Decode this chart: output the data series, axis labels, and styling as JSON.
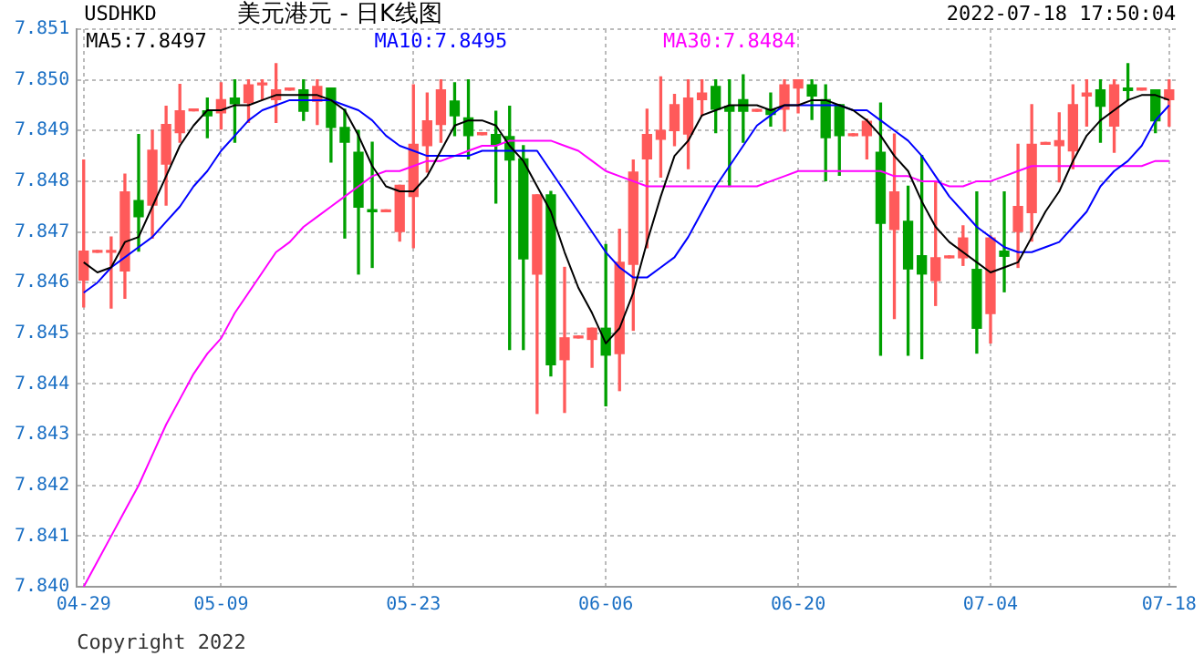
{
  "chart_data": {
    "type": "candlestick",
    "title": "美元港元 - 日K线图",
    "subtitle": "USDHKD",
    "annotations": [
      "2022-07-18 17:50:04",
      "Copyright 2022"
    ],
    "categories": [
      "04-29",
      null,
      null,
      null,
      null,
      null,
      null,
      null,
      null,
      null,
      "05-09",
      null,
      null,
      null,
      null,
      null,
      null,
      null,
      null,
      null,
      null,
      null,
      null,
      null,
      "05-23",
      null,
      null,
      null,
      null,
      null,
      null,
      null,
      null,
      null,
      null,
      null,
      null,
      null,
      "06-06",
      null,
      null,
      null,
      null,
      null,
      null,
      null,
      null,
      null,
      null,
      null,
      null,
      null,
      "06-20",
      null,
      null,
      null,
      null,
      null,
      null,
      null,
      null,
      null,
      null,
      null,
      null,
      null,
      "07-04",
      null,
      null,
      null,
      null,
      null,
      null,
      null,
      null,
      null,
      null,
      null,
      null,
      "07-18"
    ],
    "ohlc": [
      [
        7.84605,
        7.84842,
        7.84552,
        7.84662
      ],
      [
        7.8466,
        7.8466,
        7.8466,
        7.8466
      ],
      [
        7.8466,
        7.8469,
        7.8455,
        7.8466
      ],
      [
        7.84623,
        7.84814,
        7.84569,
        7.84779
      ],
      [
        7.84762,
        7.84892,
        7.84662,
        7.8473
      ],
      [
        7.84753,
        7.849,
        7.84688,
        7.84861
      ],
      [
        7.84834,
        7.84948,
        7.84753,
        7.84912
      ],
      [
        7.84896,
        7.84991,
        7.84877,
        7.84939
      ],
      [
        7.84939,
        7.84939,
        7.84939,
        7.84939
      ],
      [
        7.84939,
        7.84964,
        7.84886,
        7.84929
      ],
      [
        7.84935,
        7.84994,
        7.84903,
        7.84961
      ],
      [
        7.84964,
        7.85,
        7.84877,
        7.84953
      ],
      [
        7.84955,
        7.85,
        7.84916,
        7.8499
      ],
      [
        7.8499,
        7.85,
        7.84961,
        7.8499
      ],
      [
        7.84961,
        7.85032,
        7.84916,
        7.8498
      ],
      [
        7.8498,
        7.8498,
        7.8498,
        7.8498
      ],
      [
        7.8498,
        7.85,
        7.8492,
        7.84938
      ],
      [
        7.84958,
        7.85,
        7.84912,
        7.84987
      ],
      [
        7.84984,
        7.84984,
        7.84838,
        7.84906
      ],
      [
        7.84906,
        7.84942,
        7.84688,
        7.84877
      ],
      [
        7.84857,
        7.849,
        7.84617,
        7.84749
      ],
      [
        7.84744,
        7.84877,
        7.8463,
        7.8474
      ],
      [
        7.8474,
        7.8474,
        7.8474,
        7.8474
      ],
      [
        7.84701,
        7.84792,
        7.84682,
        7.84792
      ],
      [
        7.8477,
        7.8499,
        7.84669,
        7.84873
      ],
      [
        7.8487,
        7.84974,
        7.84818,
        7.84919
      ],
      [
        7.84912,
        7.85,
        7.84877,
        7.8498
      ],
      [
        7.84958,
        7.84994,
        7.8489,
        7.84929
      ],
      [
        7.84925,
        7.85,
        7.84844,
        7.8489
      ],
      [
        7.84892,
        7.84892,
        7.84892,
        7.84892
      ],
      [
        7.84892,
        7.84938,
        7.84757,
        7.84873
      ],
      [
        7.84888,
        7.84948,
        7.84468,
        7.84842
      ],
      [
        7.84844,
        7.8487,
        7.84468,
        7.84647
      ],
      [
        7.84617,
        7.84773,
        7.84342,
        7.84773
      ],
      [
        7.84773,
        7.8478,
        7.84416,
        7.84438
      ],
      [
        7.84448,
        7.8463,
        7.84344,
        7.84491
      ],
      [
        7.84491,
        7.84491,
        7.84491,
        7.84491
      ],
      [
        7.84488,
        7.8451,
        7.84433,
        7.8451
      ],
      [
        7.8451,
        7.84675,
        7.84357,
        7.84457
      ],
      [
        7.8446,
        7.84705,
        7.84387,
        7.8464
      ],
      [
        7.84636,
        7.84842,
        7.84506,
        7.84818
      ],
      [
        7.84844,
        7.84942,
        7.84669,
        7.84892
      ],
      [
        7.84883,
        7.85006,
        7.84808,
        7.849
      ],
      [
        7.849,
        7.84971,
        7.8487,
        7.84951
      ],
      [
        7.84893,
        7.85,
        7.84825,
        7.84964
      ],
      [
        7.84961,
        7.85,
        7.84929,
        7.84974
      ],
      [
        7.84987,
        7.85,
        7.84896,
        7.84942
      ],
      [
        7.84948,
        7.85,
        7.8479,
        7.84938
      ],
      [
        7.84961,
        7.8501,
        7.84877,
        7.84938
      ],
      [
        7.84938,
        7.84938,
        7.84938,
        7.84938
      ],
      [
        7.84942,
        7.84974,
        7.84909,
        7.84932
      ],
      [
        7.84942,
        7.85,
        7.84899,
        7.8499
      ],
      [
        7.84984,
        7.85,
        7.84935,
        7.85
      ],
      [
        7.8499,
        7.85,
        7.84922,
        7.84968
      ],
      [
        7.84961,
        7.8499,
        7.84801,
        7.84886
      ],
      [
        7.84951,
        7.84951,
        7.84812,
        7.8489
      ],
      [
        7.8489,
        7.8489,
        7.8489,
        7.8489
      ],
      [
        7.8489,
        7.84922,
        7.84844,
        7.84918
      ],
      [
        7.84857,
        7.84954,
        7.84457,
        7.84717
      ],
      [
        7.84705,
        7.84893,
        7.84529,
        7.84779
      ],
      [
        7.84721,
        7.8479,
        7.84457,
        7.84627
      ],
      [
        7.84653,
        7.84851,
        7.8445,
        7.84617
      ],
      [
        7.84604,
        7.84799,
        7.84555,
        7.84649
      ],
      [
        7.84649,
        7.84649,
        7.84649,
        7.84649
      ],
      [
        7.84649,
        7.84712,
        7.84634,
        7.84688
      ],
      [
        7.84626,
        7.84779,
        7.84461,
        7.8451
      ],
      [
        7.84539,
        7.84692,
        7.84481,
        7.84688
      ],
      [
        7.84662,
        7.84779,
        7.84582,
        7.84652
      ],
      [
        7.84701,
        7.84873,
        7.8463,
        7.8475
      ],
      [
        7.84738,
        7.84951,
        7.84682,
        7.84873
      ],
      [
        7.84873,
        7.84873,
        7.84873,
        7.84873
      ],
      [
        7.8487,
        7.84935,
        7.84799,
        7.8488
      ],
      [
        7.8486,
        7.8499,
        7.84825,
        7.84951
      ],
      [
        7.84968,
        7.85,
        7.84909,
        7.84974
      ],
      [
        7.8498,
        7.85,
        7.84877,
        7.84948
      ],
      [
        7.84909,
        7.85,
        7.84857,
        7.8499
      ],
      [
        7.84984,
        7.85032,
        7.84961,
        7.84979
      ],
      [
        7.8498,
        7.8498,
        7.8498,
        7.8498
      ],
      [
        7.8498,
        7.8498,
        7.84896,
        7.84919
      ],
      [
        7.84961,
        7.85,
        7.84909,
        7.8498
      ]
    ],
    "colors": [
      "#ff5a5a",
      "#ff5a5a",
      "#ff5a5a",
      "#ff5a5a",
      "#00a000",
      "#ff5a5a",
      "#ff5a5a",
      "#ff5a5a",
      "#ff5a5a",
      "#00a000",
      "#ff5a5a",
      "#00a000",
      "#ff5a5a",
      "#ff5a5a",
      "#ff5a5a",
      "#ff5a5a",
      "#00a000",
      "#ff5a5a",
      "#00a000",
      "#00a000",
      "#00a000",
      "#00a000",
      "#ff5a5a",
      "#ff5a5a",
      "#ff5a5a",
      "#ff5a5a",
      "#ff5a5a",
      "#00a000",
      "#00a000",
      "#ff5a5a",
      "#00a000",
      "#00a000",
      "#00a000",
      "#ff5a5a",
      "#00a000",
      "#ff5a5a",
      "#ff5a5a",
      "#ff5a5a",
      "#00a000",
      "#ff5a5a",
      "#ff5a5a",
      "#ff5a5a",
      "#ff5a5a",
      "#ff5a5a",
      "#ff5a5a",
      "#ff5a5a",
      "#00a000",
      "#00a000",
      "#00a000",
      "#ff5a5a",
      "#00a000",
      "#ff5a5a",
      "#ff5a5a",
      "#00a000",
      "#00a000",
      "#00a000",
      "#ff5a5a",
      "#ff5a5a",
      "#00a000",
      "#ff5a5a",
      "#00a000",
      "#00a000",
      "#ff5a5a",
      "#ff5a5a",
      "#ff5a5a",
      "#00a000",
      "#ff5a5a",
      "#00a000",
      "#ff5a5a",
      "#ff5a5a",
      "#ff5a5a",
      "#ff5a5a",
      "#ff5a5a",
      "#ff5a5a",
      "#00a000",
      "#ff5a5a",
      "#00a000",
      "#ff5a5a",
      "#00a000",
      "#ff5a5a"
    ],
    "series": [
      {
        "name": "MA5:7.8497",
        "type": "line",
        "color": "#000000",
        "values": [
          7.8464,
          7.8462,
          7.8463,
          7.8468,
          7.8469,
          7.8475,
          7.8481,
          7.8487,
          7.8491,
          7.8494,
          7.8494,
          7.8495,
          7.8495,
          7.8496,
          7.8497,
          7.8497,
          7.8497,
          7.8497,
          7.8496,
          7.8494,
          7.8489,
          7.8483,
          7.8479,
          7.8478,
          7.8478,
          7.8481,
          7.8486,
          7.8491,
          7.8492,
          7.8492,
          7.8491,
          7.8487,
          7.8484,
          7.8479,
          7.8474,
          7.8466,
          7.8459,
          7.8454,
          7.8448,
          7.8451,
          7.8458,
          7.8468,
          7.8477,
          7.8485,
          7.8488,
          7.8493,
          7.8494,
          7.8495,
          7.8495,
          7.8495,
          7.8494,
          7.8495,
          7.8495,
          7.8496,
          7.8496,
          7.8495,
          7.8494,
          7.8492,
          7.8489,
          7.8485,
          7.8482,
          7.8476,
          7.8471,
          7.8468,
          7.8466,
          7.8464,
          7.8462,
          7.8463,
          7.8464,
          7.8469,
          7.8474,
          7.8478,
          7.8484,
          7.8489,
          7.8492,
          7.8494,
          7.8496,
          7.8497,
          7.8497,
          7.8496
        ]
      },
      {
        "name": "MA10:7.8495",
        "type": "line",
        "color": "#0000ff",
        "values": [
          7.8458,
          7.846,
          7.8463,
          7.8465,
          7.8467,
          7.8469,
          7.8472,
          7.8475,
          7.8479,
          7.8482,
          7.8486,
          7.8489,
          7.8492,
          7.8494,
          7.8495,
          7.8496,
          7.8496,
          7.8496,
          7.8496,
          7.8495,
          7.8494,
          7.8492,
          7.8489,
          7.8487,
          7.8486,
          7.8485,
          7.8485,
          7.8485,
          7.8485,
          7.8486,
          7.8486,
          7.8486,
          7.8486,
          7.8486,
          7.8482,
          7.8478,
          7.8474,
          7.847,
          7.8466,
          7.8463,
          7.8461,
          7.8461,
          7.8463,
          7.8465,
          7.8469,
          7.8474,
          7.8479,
          7.8483,
          7.8487,
          7.8491,
          7.8493,
          7.8495,
          7.8495,
          7.8495,
          7.8495,
          7.8495,
          7.8494,
          7.8494,
          7.8492,
          7.849,
          7.8488,
          7.8485,
          7.8481,
          7.8477,
          7.8474,
          7.8471,
          7.8469,
          7.8467,
          7.8466,
          7.8466,
          7.8467,
          7.8468,
          7.8471,
          7.8474,
          7.8479,
          7.8482,
          7.8484,
          7.8487,
          7.8492,
          7.8495
        ]
      },
      {
        "name": "MA30:7.8484",
        "type": "line",
        "color": "#ff00ff",
        "values": [
          7.84,
          7.8405,
          7.841,
          7.8415,
          7.842,
          7.8426,
          7.8432,
          7.8437,
          7.8442,
          7.8446,
          7.8449,
          7.8454,
          7.8458,
          7.8462,
          7.8466,
          7.8468,
          7.8471,
          7.8473,
          7.8475,
          7.8477,
          7.8479,
          7.8481,
          7.8482,
          7.8482,
          7.8483,
          7.8484,
          7.8484,
          7.8485,
          7.8486,
          7.8487,
          7.8487,
          7.8488,
          7.8488,
          7.8488,
          7.8488,
          7.8487,
          7.8486,
          7.8484,
          7.8482,
          7.8481,
          7.848,
          7.8479,
          7.8479,
          7.8479,
          7.8479,
          7.8479,
          7.8479,
          7.8479,
          7.8479,
          7.8479,
          7.848,
          7.8481,
          7.8482,
          7.8482,
          7.8482,
          7.8482,
          7.8482,
          7.8482,
          7.8482,
          7.8481,
          7.8481,
          7.848,
          7.848,
          7.8479,
          7.8479,
          7.848,
          7.848,
          7.8481,
          7.8482,
          7.8483,
          7.8483,
          7.8483,
          7.8483,
          7.8483,
          7.8483,
          7.8483,
          7.8483,
          7.8483,
          7.8484,
          7.8484
        ]
      }
    ],
    "ylim": [
      7.84,
      7.851
    ],
    "yticks": [
      {
        "value": 7.84,
        "label": "7.840"
      },
      7.841,
      7.842,
      7.843,
      7.844,
      7.845,
      7.846,
      7.847,
      7.848,
      7.849,
      {
        "value": 7.85,
        "label": "7.850"
      },
      7.851
    ],
    "grid": true,
    "legend": "top left"
  }
}
